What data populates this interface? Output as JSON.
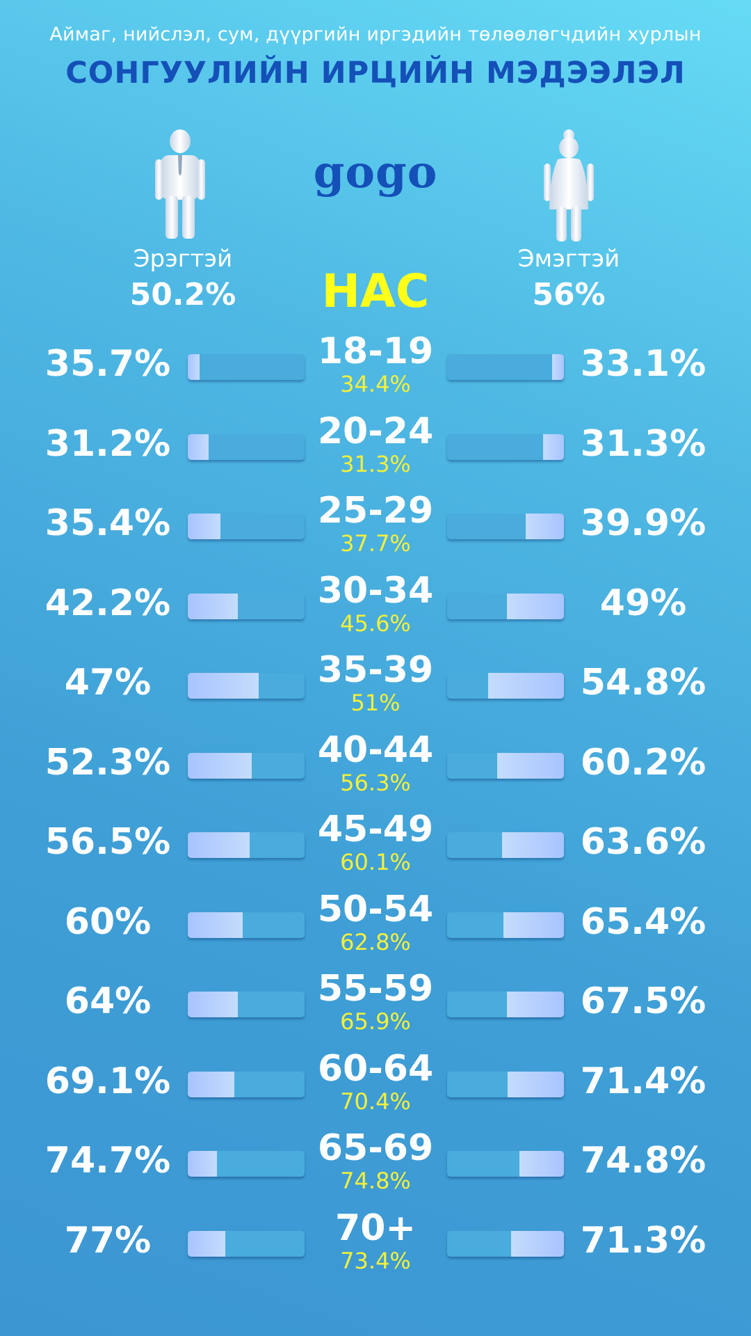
{
  "header": {
    "subtitle": "Аймаг, нийслэл, сум, дүүргийн иргэдийн төлөөлөгчдийн хурлын",
    "title": "СОНГУУЛИЙН ИРЦИЙН МЭДЭЭЛЭЛ",
    "logo": "gogo"
  },
  "colors": {
    "title": "#1450b8",
    "age_percent": "#f4f03a",
    "age_header": "#ffff1a",
    "bar_track": "#49acdc",
    "bar_fill": "#a8c4ff"
  },
  "icons": {
    "male": "man-icon",
    "female": "woman-icon"
  },
  "male": {
    "label": "Эрэгтэй",
    "total": "50.2%"
  },
  "female": {
    "label": "Эмэгтэй",
    "total": "56%"
  },
  "age_header": "НАС",
  "chart_data": {
    "type": "bar",
    "categories": [
      "18-19",
      "20-24",
      "25-29",
      "30-34",
      "35-39",
      "40-44",
      "45-49",
      "50-54",
      "55-59",
      "60-64",
      "65-69",
      "70+"
    ],
    "series": [
      {
        "name": "Эрэгтэй",
        "values": [
          35.7,
          31.2,
          35.4,
          42.2,
          47,
          52.3,
          56.5,
          60,
          64,
          69.1,
          74.7,
          77
        ],
        "labels": [
          "35.7%",
          "31.2%",
          "35.4%",
          "42.2%",
          "47%",
          "52.3%",
          "56.5%",
          "60%",
          "64%",
          "69.1%",
          "74.7%",
          "77%"
        ],
        "bar_fill": [
          0.1,
          0.18,
          0.28,
          0.43,
          0.61,
          0.55,
          0.53,
          0.47,
          0.43,
          0.4,
          0.25,
          0.32
        ]
      },
      {
        "name": "Эмэгтэй",
        "values": [
          33.1,
          31.3,
          39.9,
          49,
          54.8,
          60.2,
          63.6,
          65.4,
          67.5,
          71.4,
          74.8,
          71.3
        ],
        "labels": [
          "33.1%",
          "31.3%",
          "39.9%",
          "49%",
          "54.8%",
          "60.2%",
          "63.6%",
          "65.4%",
          "67.5%",
          "71.4%",
          "74.8%",
          "71.3%"
        ],
        "bar_fill": [
          0.1,
          0.18,
          0.33,
          0.49,
          0.65,
          0.57,
          0.53,
          0.52,
          0.49,
          0.48,
          0.38,
          0.45
        ]
      },
      {
        "name": "",
        "values": [
          34.4,
          31.3,
          37.7,
          45.6,
          51,
          56.3,
          60.1,
          62.8,
          65.9,
          70.4,
          74.8,
          73.4
        ],
        "labels": [
          "34.4%",
          "31.3%",
          "37.7%",
          "45.6%",
          "51%",
          "56.3%",
          "60.1%",
          "62.8%",
          "65.9%",
          "70.4%",
          "74.8%",
          "73.4%"
        ]
      }
    ],
    "unit": "%"
  }
}
